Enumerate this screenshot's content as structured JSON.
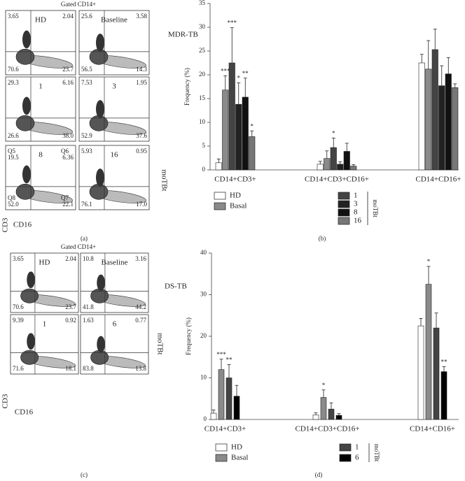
{
  "flow_panels": [
    {
      "title": "Gated CD14+",
      "condition": "MDR-TB",
      "group_label": "moTBt",
      "y_label": "CD3",
      "x_label": "CD16",
      "panel_label": "(a)",
      "plots": [
        {
          "label": "HD",
          "quadrants": [
            "3.65",
            "2.04",
            "70.6",
            "23.7"
          ]
        },
        {
          "label": "Baseline",
          "quadrants": [
            "25.6",
            "3.58",
            "56.5",
            "14.3"
          ]
        },
        {
          "label": "1",
          "quadrants": [
            "29.3",
            "6.16",
            "26.6",
            "38.0"
          ]
        },
        {
          "label": "3",
          "quadrants": [
            "7.53",
            "1.95",
            "52.9",
            "37.6"
          ]
        },
        {
          "label": "8",
          "quadrants": [
            "19.5",
            "6.36",
            "52.0",
            "22.1"
          ],
          "gate_labels": [
            "Q5",
            "Q6",
            "Q8",
            "Q7"
          ]
        },
        {
          "label": "16",
          "quadrants": [
            "5.93",
            "0.95",
            "76.1",
            "17.0"
          ]
        }
      ]
    },
    {
      "title": "Gated CD14+",
      "condition": "DS-TB",
      "group_label": "moTBt",
      "y_label": "CD3",
      "x_label": "CD16",
      "panel_label": "(c)",
      "plots": [
        {
          "label": "HD",
          "quadrants": [
            "3.65",
            "2.04",
            "70.6",
            "23.7"
          ]
        },
        {
          "label": "Baseline",
          "quadrants": [
            "10.8",
            "3.16",
            "41.8",
            "44.2"
          ]
        },
        {
          "label": "1",
          "quadrants": [
            "9.39",
            "0.92",
            "71.6",
            "18.1"
          ]
        },
        {
          "label": "6",
          "quadrants": [
            "1.63",
            "0.77",
            "83.8",
            "13.8"
          ]
        }
      ]
    }
  ],
  "chart_data": [
    {
      "type": "bar",
      "panel_label": "(b)",
      "y_label": "Frequency (%)",
      "legend_group": "moTBt",
      "categories": [
        "CD14+CD3+",
        "CD14+CD3+CD16+",
        "CD14+CD16+"
      ],
      "ylim": [
        0,
        35
      ],
      "yticks": [
        0,
        5,
        10,
        15,
        20,
        25,
        30,
        35
      ],
      "series": [
        {
          "name": "HD",
          "color": "#ffffff",
          "values": [
            1.5,
            1.2,
            22.5
          ],
          "errors": [
            0.8,
            0.6,
            1.8
          ],
          "annotations": [
            null,
            null,
            null
          ]
        },
        {
          "name": "Basal",
          "color": "#8a8a8a",
          "values": [
            16.8,
            2.4,
            21.2
          ],
          "errors": [
            3,
            1.6,
            6
          ],
          "annotations": [
            "***",
            null,
            null
          ]
        },
        {
          "name": "1",
          "color": "#444444",
          "values": [
            22.5,
            4.7,
            25.3
          ],
          "errors": [
            7.4,
            2,
            4.3
          ],
          "annotations": [
            "***",
            "*",
            null
          ]
        },
        {
          "name": "3",
          "color": "#222222",
          "values": [
            13.8,
            1.2,
            17.7
          ],
          "errors": [
            4.5,
            0.5,
            4.2
          ],
          "annotations": [
            "*",
            null,
            null
          ]
        },
        {
          "name": "8",
          "color": "#111111",
          "values": [
            15.3,
            3.9,
            20.2
          ],
          "errors": [
            4,
            1.7,
            3.4
          ],
          "annotations": [
            "**",
            null,
            null
          ]
        },
        {
          "name": "16",
          "color": "#777777",
          "values": [
            7.0,
            0.8,
            17.3
          ],
          "errors": [
            1.2,
            0.3,
            0.8
          ],
          "annotations": [
            "*",
            null,
            null
          ]
        }
      ]
    },
    {
      "type": "bar",
      "panel_label": "(d)",
      "y_label": "Frequency (%)",
      "legend_group": "moTBt",
      "categories": [
        "CD14+CD3+",
        "CD14+CD3+CD16+",
        "CD14+CD16+"
      ],
      "ylim": [
        0,
        40
      ],
      "yticks": [
        0,
        10,
        20,
        30,
        40
      ],
      "series": [
        {
          "name": "HD",
          "color": "#ffffff",
          "values": [
            1.5,
            1.1,
            22.5
          ],
          "errors": [
            0.8,
            0.5,
            1.8
          ],
          "annotations": [
            null,
            null,
            null
          ]
        },
        {
          "name": "Basal",
          "color": "#8a8a8a",
          "values": [
            12,
            5.3,
            32.5
          ],
          "errors": [
            2.5,
            1.8,
            4.3
          ],
          "annotations": [
            "***",
            "*",
            "*"
          ]
        },
        {
          "name": "1",
          "color": "#444444",
          "values": [
            10,
            2.5,
            22
          ],
          "errors": [
            3.2,
            1.5,
            3.6
          ],
          "annotations": [
            "**",
            null,
            null
          ]
        },
        {
          "name": "6",
          "color": "#000000",
          "values": [
            5.6,
            1.0,
            11.5
          ],
          "errors": [
            2.6,
            0.4,
            1.2
          ],
          "annotations": [
            null,
            null,
            "**"
          ]
        }
      ]
    }
  ]
}
